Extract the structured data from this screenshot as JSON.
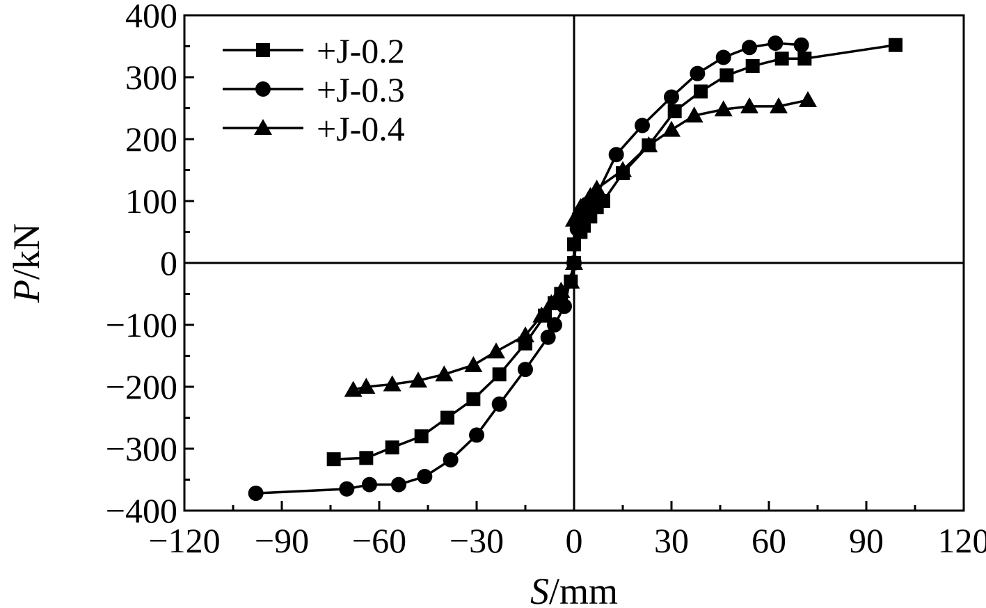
{
  "chart_data": {
    "type": "line",
    "title": "",
    "xlabel": {
      "var": "S",
      "unit": "/mm"
    },
    "ylabel": {
      "var": "P",
      "unit": "/kN"
    },
    "xlim": [
      -120,
      120
    ],
    "ylim": [
      -400,
      400
    ],
    "x_ticks": [
      -120,
      -90,
      -60,
      -30,
      0,
      30,
      60,
      90,
      120
    ],
    "x_tick_labels": [
      "−120",
      "−90",
      "−60",
      "−30",
      "0",
      "30",
      "60",
      "90",
      "120"
    ],
    "y_ticks": [
      -400,
      -300,
      -200,
      -100,
      0,
      100,
      200,
      300,
      400
    ],
    "y_tick_labels": [
      "−400",
      "−300",
      "−200",
      "−100",
      "0",
      "100",
      "200",
      "300",
      "400"
    ],
    "grid": false,
    "zero_lines": true,
    "legend_position": "top-left",
    "series": [
      {
        "name": "+J-0.2",
        "marker": "square",
        "points": [
          [
            -74,
            -317
          ],
          [
            -64,
            -315
          ],
          [
            -56,
            -298
          ],
          [
            -47,
            -280
          ],
          [
            -39,
            -250
          ],
          [
            -31,
            -220
          ],
          [
            -23,
            -180
          ],
          [
            -15,
            -130
          ],
          [
            -9,
            -85
          ],
          [
            -6,
            -65
          ],
          [
            -4,
            -50
          ],
          [
            -1,
            -30
          ],
          [
            0,
            0
          ],
          [
            0,
            30
          ],
          [
            2,
            50
          ],
          [
            3,
            60
          ],
          [
            5,
            75
          ],
          [
            7,
            90
          ],
          [
            9,
            100
          ],
          [
            15,
            145
          ],
          [
            23,
            190
          ],
          [
            31,
            245
          ],
          [
            39,
            277
          ],
          [
            47,
            303
          ],
          [
            55,
            318
          ],
          [
            64,
            330
          ],
          [
            71,
            330
          ],
          [
            99,
            352
          ]
        ]
      },
      {
        "name": "+J-0.3",
        "marker": "circle",
        "points": [
          [
            -98,
            -372
          ],
          [
            -70,
            -365
          ],
          [
            -63,
            -358
          ],
          [
            -54,
            -358
          ],
          [
            -46,
            -345
          ],
          [
            -38,
            -318
          ],
          [
            -30,
            -278
          ],
          [
            -23,
            -228
          ],
          [
            -15,
            -172
          ],
          [
            -8,
            -120
          ],
          [
            -6,
            -100
          ],
          [
            -3,
            -70
          ],
          [
            0,
            0
          ],
          [
            1,
            55
          ],
          [
            2,
            75
          ],
          [
            4,
            95
          ],
          [
            7,
            110
          ],
          [
            13,
            175
          ],
          [
            21,
            222
          ],
          [
            30,
            268
          ],
          [
            38,
            306
          ],
          [
            46,
            332
          ],
          [
            54,
            348
          ],
          [
            62,
            355
          ],
          [
            70,
            352
          ]
        ]
      },
      {
        "name": "+J-0.4",
        "marker": "triangle",
        "points": [
          [
            -68,
            -205
          ],
          [
            -64,
            -200
          ],
          [
            -56,
            -196
          ],
          [
            -48,
            -190
          ],
          [
            -40,
            -180
          ],
          [
            -31,
            -165
          ],
          [
            -24,
            -143
          ],
          [
            -15,
            -117
          ],
          [
            -10,
            -85
          ],
          [
            -7,
            -65
          ],
          [
            -4,
            -45
          ],
          [
            -1,
            -30
          ],
          [
            0,
            0
          ],
          [
            0,
            70
          ],
          [
            2,
            90
          ],
          [
            5,
            108
          ],
          [
            7,
            120
          ],
          [
            15,
            150
          ],
          [
            23,
            190
          ],
          [
            30,
            215
          ],
          [
            37,
            238
          ],
          [
            46,
            248
          ],
          [
            54,
            253
          ],
          [
            63,
            253
          ],
          [
            72,
            263
          ]
        ]
      }
    ]
  }
}
